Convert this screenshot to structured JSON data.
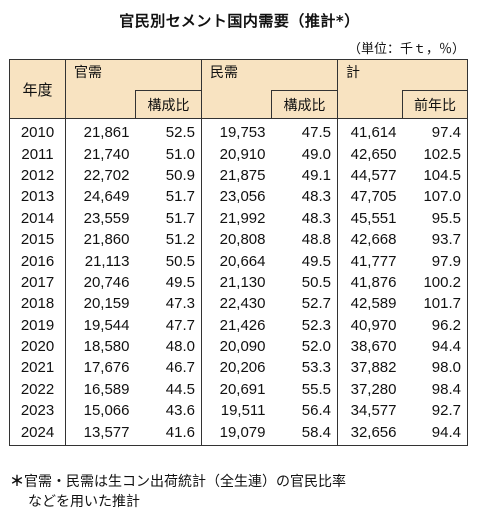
{
  "title": "官民別セメント国内需要（推計*）",
  "unit": "（単位：千ｔ，％）",
  "headers": {
    "year": "年度",
    "government": "官需",
    "private": "民需",
    "total": "計",
    "share": "構成比",
    "yoy": "前年比"
  },
  "rows": [
    {
      "year": "2010",
      "gov": "21,861",
      "gov_share": "52.5",
      "pri": "19,753",
      "pri_share": "47.5",
      "total": "41,614",
      "yoy": "97.4"
    },
    {
      "year": "2011",
      "gov": "21,740",
      "gov_share": "51.0",
      "pri": "20,910",
      "pri_share": "49.0",
      "total": "42,650",
      "yoy": "102.5"
    },
    {
      "year": "2012",
      "gov": "22,702",
      "gov_share": "50.9",
      "pri": "21,875",
      "pri_share": "49.1",
      "total": "44,577",
      "yoy": "104.5"
    },
    {
      "year": "2013",
      "gov": "24,649",
      "gov_share": "51.7",
      "pri": "23,056",
      "pri_share": "48.3",
      "total": "47,705",
      "yoy": "107.0"
    },
    {
      "year": "2014",
      "gov": "23,559",
      "gov_share": "51.7",
      "pri": "21,992",
      "pri_share": "48.3",
      "total": "45,551",
      "yoy": "95.5"
    },
    {
      "year": "2015",
      "gov": "21,860",
      "gov_share": "51.2",
      "pri": "20,808",
      "pri_share": "48.8",
      "total": "42,668",
      "yoy": "93.7"
    },
    {
      "year": "2016",
      "gov": "21,113",
      "gov_share": "50.5",
      "pri": "20,664",
      "pri_share": "49.5",
      "total": "41,777",
      "yoy": "97.9"
    },
    {
      "year": "2017",
      "gov": "20,746",
      "gov_share": "49.5",
      "pri": "21,130",
      "pri_share": "50.5",
      "total": "41,876",
      "yoy": "100.2"
    },
    {
      "year": "2018",
      "gov": "20,159",
      "gov_share": "47.3",
      "pri": "22,430",
      "pri_share": "52.7",
      "total": "42,589",
      "yoy": "101.7"
    },
    {
      "year": "2019",
      "gov": "19,544",
      "gov_share": "47.7",
      "pri": "21,426",
      "pri_share": "52.3",
      "total": "40,970",
      "yoy": "96.2"
    },
    {
      "year": "2020",
      "gov": "18,580",
      "gov_share": "48.0",
      "pri": "20,090",
      "pri_share": "52.0",
      "total": "38,670",
      "yoy": "94.4"
    },
    {
      "year": "2021",
      "gov": "17,676",
      "gov_share": "46.7",
      "pri": "20,206",
      "pri_share": "53.3",
      "total": "37,882",
      "yoy": "98.0"
    },
    {
      "year": "2022",
      "gov": "16,589",
      "gov_share": "44.5",
      "pri": "20,691",
      "pri_share": "55.5",
      "total": "37,280",
      "yoy": "98.4"
    },
    {
      "year": "2023",
      "gov": "15,066",
      "gov_share": "43.6",
      "pri": "19,511",
      "pri_share": "56.4",
      "total": "34,577",
      "yoy": "92.7"
    },
    {
      "year": "2024",
      "gov": "13,577",
      "gov_share": "41.6",
      "pri": "19,079",
      "pri_share": "58.4",
      "total": "32,656",
      "yoy": "94.4"
    }
  ],
  "note": {
    "mark": "＊",
    "line1": "官需・民需は生コン出荷統計（全生連）の官民比率",
    "line2": "などを用いた推計"
  }
}
